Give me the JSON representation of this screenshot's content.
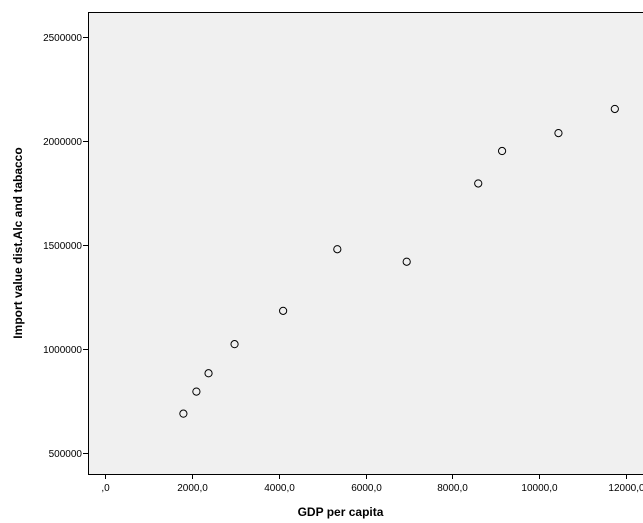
{
  "chart_data": {
    "type": "scatter",
    "xlabel": "GDP per capita",
    "ylabel": "Import value dist.Alc and tabacco",
    "xlim": [
      -400,
      12400
    ],
    "ylim": [
      400000,
      2620000
    ],
    "x_ticks": [
      {
        "value": 0,
        "label": ",0"
      },
      {
        "value": 2000,
        "label": "2000,0"
      },
      {
        "value": 4000,
        "label": "4000,0"
      },
      {
        "value": 6000,
        "label": "6000,0"
      },
      {
        "value": 8000,
        "label": "8000,0"
      },
      {
        "value": 10000,
        "label": "10000,0"
      },
      {
        "value": 12000,
        "label": "12000,0"
      }
    ],
    "y_ticks": [
      {
        "value": 500000,
        "label": "500000"
      },
      {
        "value": 1000000,
        "label": "1000000"
      },
      {
        "value": 1500000,
        "label": "1500000"
      },
      {
        "value": 2000000,
        "label": "2000000"
      },
      {
        "value": 2500000,
        "label": "2500000"
      }
    ],
    "points": [
      {
        "x": 1800,
        "y": 690000
      },
      {
        "x": 2100,
        "y": 796000
      },
      {
        "x": 2380,
        "y": 884000
      },
      {
        "x": 2980,
        "y": 1024000
      },
      {
        "x": 4100,
        "y": 1184000
      },
      {
        "x": 5350,
        "y": 1480000
      },
      {
        "x": 6950,
        "y": 1420000
      },
      {
        "x": 8600,
        "y": 1796000
      },
      {
        "x": 9150,
        "y": 1952000
      },
      {
        "x": 10450,
        "y": 2038000
      },
      {
        "x": 11750,
        "y": 2154000
      }
    ],
    "grid": false,
    "marker": "hollow-circle",
    "colors": {
      "plot_background": "#f0f0f0",
      "marker_stroke": "#000000",
      "axis": "#000000"
    }
  }
}
